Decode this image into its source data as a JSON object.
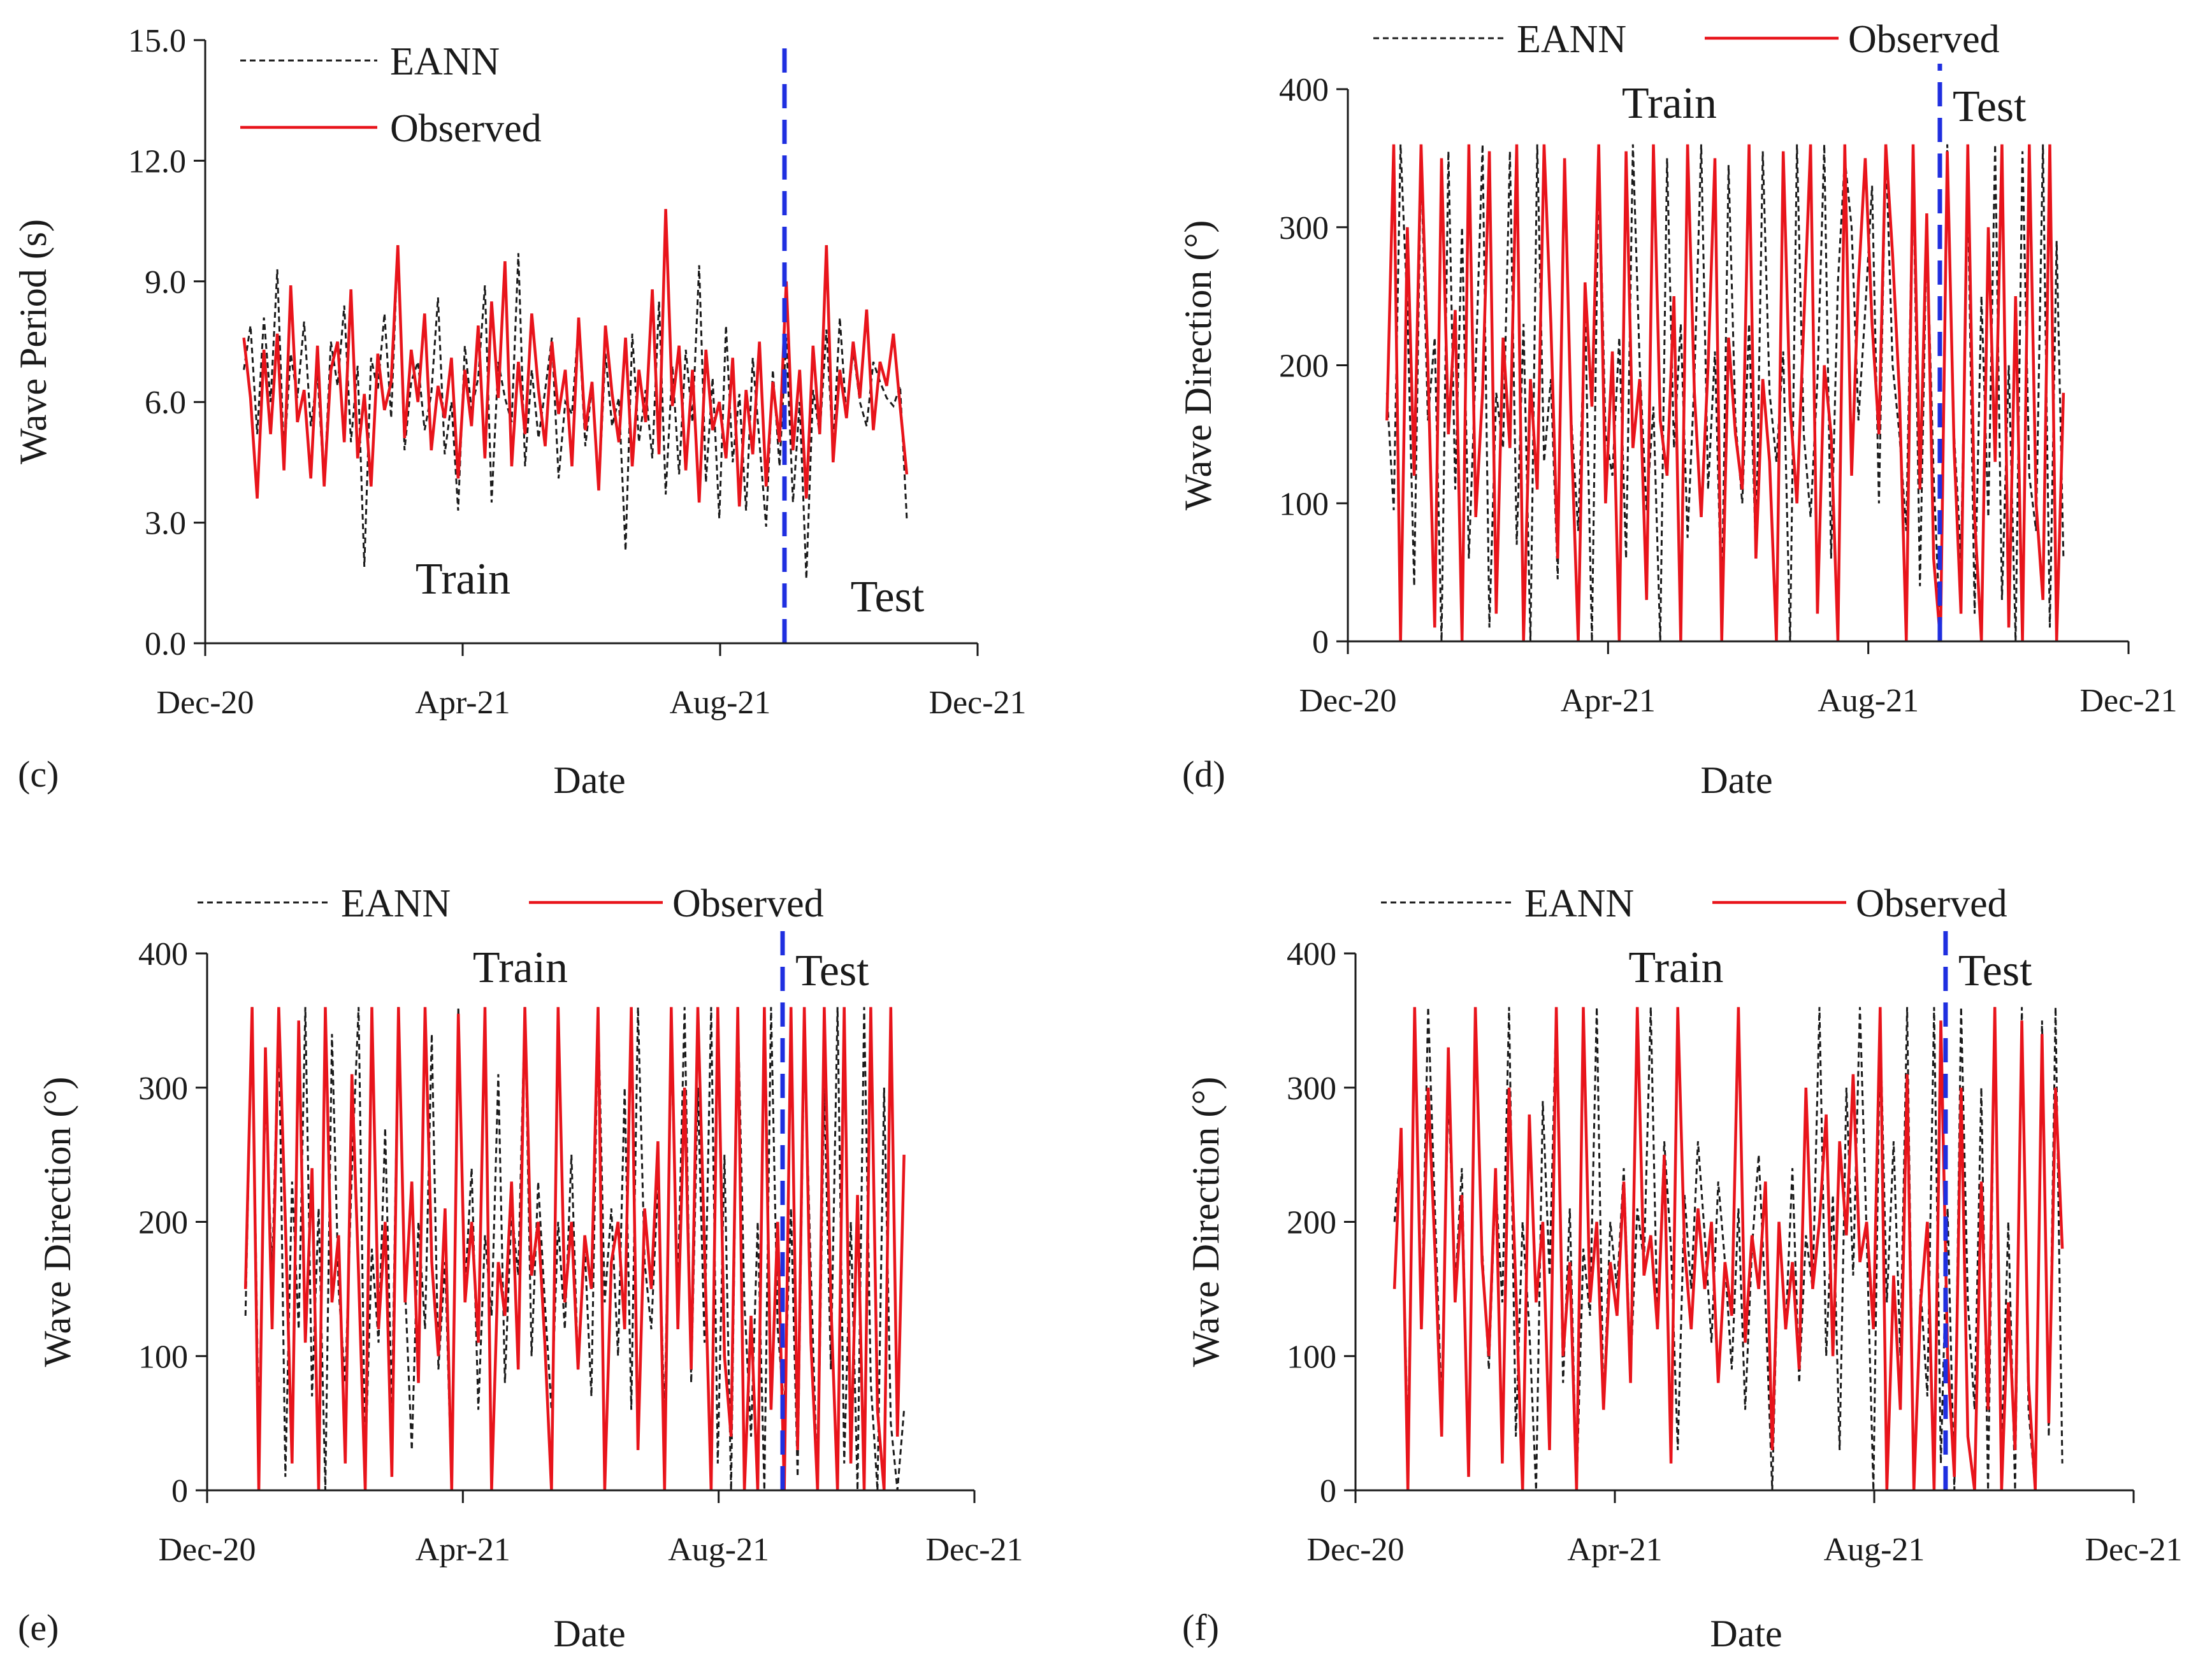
{
  "colors": {
    "eann": "#1a1a1a",
    "observed": "#e8141b",
    "split": "#1f2fe0",
    "axis": "#1a1a1a"
  },
  "chart_data": [
    {
      "panel": "(c)",
      "type": "line",
      "xlabel": "Date",
      "ylabel": "Wave Period (s)",
      "x_ticks": [
        "Dec-20",
        "Apr-21",
        "Aug-21",
        "Dec-21"
      ],
      "x_tick_months": [
        0,
        4,
        8,
        12
      ],
      "xlim_months": [
        0,
        12
      ],
      "ylim": [
        0,
        15
      ],
      "y_ticks": [
        "0.0",
        "3.0",
        "6.0",
        "9.0",
        "12.0",
        "15.0"
      ],
      "y_tick_values": [
        0,
        3,
        6,
        9,
        12,
        15
      ],
      "split_month": 9.0,
      "train_label": "Train",
      "test_label": "Test",
      "legend": [
        "EANN",
        "Observed"
      ],
      "legend_layout": "stacked-top-left",
      "region_label_position": "bottom",
      "series": [
        {
          "name": "EANN",
          "style": "dashed",
          "x_start": 0.6,
          "x_end": 10.9,
          "values": [
            6.8,
            7.9,
            5.2,
            8.1,
            6.0,
            9.3,
            4.6,
            7.2,
            6.1,
            8.0,
            5.4,
            6.7,
            3.9,
            7.5,
            6.4,
            8.4,
            5.0,
            6.9,
            1.9,
            7.1,
            6.3,
            8.2,
            5.6,
            9.9,
            4.8,
            6.5,
            7.0,
            5.3,
            6.2,
            8.6,
            4.7,
            6.0,
            3.3,
            7.4,
            5.8,
            6.6,
            8.9,
            3.5,
            7.0,
            6.1,
            5.5,
            9.7,
            4.4,
            6.8,
            5.1,
            6.3,
            7.6,
            4.1,
            6.0,
            5.7,
            8.0,
            4.9,
            6.4,
            3.8,
            7.2,
            5.4,
            6.1,
            2.3,
            7.7,
            5.0,
            6.3,
            4.6,
            8.5,
            3.7,
            6.9,
            4.2,
            7.3,
            5.5,
            9.4,
            4.0,
            6.6,
            3.1,
            7.9,
            4.5,
            6.2,
            3.3,
            7.1,
            5.0,
            2.9,
            6.8,
            4.4,
            7.6,
            3.5,
            6.0,
            1.6,
            6.3,
            5.2,
            7.8,
            4.8,
            8.1,
            5.6,
            7.3,
            6.0,
            5.4,
            7.0,
            6.5,
            6.1,
            5.9,
            6.4,
            3.1
          ]
        },
        {
          "name": "Observed",
          "style": "solid",
          "x_start": 0.6,
          "x_end": 10.9,
          "values": [
            7.6,
            6.1,
            3.6,
            7.3,
            5.2,
            7.7,
            4.3,
            8.9,
            5.5,
            6.3,
            4.1,
            7.4,
            3.9,
            6.8,
            7.5,
            5.0,
            8.8,
            4.6,
            6.2,
            3.9,
            7.2,
            5.8,
            6.5,
            9.9,
            5.1,
            7.3,
            6.0,
            8.2,
            4.8,
            6.4,
            5.6,
            7.1,
            4.1,
            6.8,
            5.4,
            7.9,
            4.6,
            8.5,
            6.1,
            9.5,
            4.4,
            7.0,
            5.2,
            8.2,
            6.3,
            4.9,
            7.5,
            5.7,
            6.8,
            4.4,
            8.1,
            5.3,
            6.5,
            3.8,
            7.9,
            6.2,
            5.0,
            7.6,
            4.4,
            6.8,
            5.5,
            8.8,
            4.7,
            10.8,
            5.9,
            7.4,
            4.3,
            6.8,
            3.5,
            7.3,
            5.3,
            6.0,
            4.6,
            7.1,
            3.4,
            6.3,
            4.7,
            7.5,
            3.9,
            6.5,
            5.0,
            9.0,
            4.8,
            6.8,
            3.6,
            7.4,
            5.2,
            9.9,
            4.5,
            6.8,
            5.6,
            7.5,
            6.1,
            8.3,
            5.3,
            7.0,
            6.4,
            7.7,
            5.9,
            4.2
          ]
        }
      ]
    },
    {
      "panel": "(d)",
      "type": "line",
      "xlabel": "Date",
      "ylabel": "Wave Direction (°)",
      "x_ticks": [
        "Dec-20",
        "Apr-21",
        "Aug-21",
        "Dec-21"
      ],
      "x_tick_months": [
        0,
        4,
        8,
        12
      ],
      "xlim_months": [
        0,
        12
      ],
      "ylim": [
        0,
        400
      ],
      "y_ticks": [
        "0",
        "100",
        "200",
        "300",
        "400"
      ],
      "y_tick_values": [
        0,
        100,
        200,
        300,
        400
      ],
      "split_month": 9.1,
      "train_label": "Train",
      "test_label": "Test",
      "legend": [
        "EANN",
        "Observed"
      ],
      "legend_layout": "inline-top-center",
      "region_label_position": "top",
      "series": [
        {
          "name": "EANN",
          "style": "dashed",
          "x_start": 0.6,
          "x_end": 11.0,
          "values": [
            180,
            95,
            360,
            240,
            40,
            350,
            160,
            220,
            0,
            355,
            110,
            300,
            60,
            200,
            360,
            10,
            180,
            140,
            355,
            70,
            230,
            0,
            360,
            130,
            190,
            45,
            345,
            160,
            80,
            240,
            0,
            355,
            150,
            120,
            220,
            60,
            360,
            200,
            95,
            170,
            0,
            350,
            140,
            230,
            75,
            190,
            360,
            110,
            210,
            20,
            345,
            160,
            100,
            230,
            60,
            355,
            180,
            130,
            210,
            0,
            360,
            150,
            90,
            190,
            360,
            60,
            260,
            350,
            300,
            160,
            240,
            330,
            100,
            360,
            200,
            150,
            80,
            350,
            40,
            300,
            120,
            0,
            360,
            150,
            60,
            330,
            20,
            250,
            90,
            360,
            30,
            200,
            0,
            355,
            120,
            80,
            360,
            10,
            290,
            60
          ]
        },
        {
          "name": "Observed",
          "style": "solid",
          "x_start": 0.6,
          "x_end": 11.0,
          "values": [
            160,
            360,
            0,
            300,
            120,
            360,
            200,
            10,
            350,
            150,
            240,
            0,
            360,
            90,
            180,
            355,
            20,
            220,
            140,
            360,
            0,
            190,
            110,
            360,
            230,
            60,
            350,
            150,
            0,
            260,
            170,
            360,
            100,
            210,
            0,
            355,
            140,
            190,
            30,
            360,
            160,
            120,
            250,
            0,
            360,
            180,
            90,
            200,
            350,
            0,
            220,
            150,
            110,
            360,
            60,
            190,
            130,
            0,
            355,
            170,
            100,
            230,
            360,
            20,
            200,
            150,
            0,
            360,
            120,
            260,
            350,
            230,
            150,
            360,
            280,
            180,
            0,
            360,
            110,
            310,
            60,
            0,
            355,
            140,
            20,
            360,
            90,
            0,
            300,
            130,
            360,
            10,
            250,
            0,
            360,
            100,
            30,
            360,
            0,
            180
          ]
        }
      ]
    },
    {
      "panel": "(e)",
      "type": "line",
      "xlabel": "Date",
      "ylabel": "Wave Direction (°)",
      "x_ticks": [
        "Dec-20",
        "Apr-21",
        "Aug-21",
        "Dec-21"
      ],
      "x_tick_months": [
        0,
        4,
        8,
        12
      ],
      "xlim_months": [
        0,
        12
      ],
      "ylim": [
        0,
        400
      ],
      "y_ticks": [
        "0",
        "100",
        "200",
        "300",
        "400"
      ],
      "y_tick_values": [
        0,
        100,
        200,
        300,
        400
      ],
      "split_month": 9.0,
      "train_label": "Train",
      "test_label": "Test",
      "legend": [
        "EANN",
        "Observed"
      ],
      "legend_layout": "inline-top-center",
      "region_label_position": "top",
      "series": [
        {
          "name": "EANN",
          "style": "dashed",
          "x_start": 0.6,
          "x_end": 10.9,
          "values": [
            130,
            360,
            40,
            300,
            160,
            355,
            10,
            230,
            120,
            360,
            70,
            210,
            0,
            340,
            150,
            80,
            240,
            360,
            20,
            180,
            110,
            270,
            60,
            360,
            150,
            30,
            200,
            120,
            340,
            90,
            170,
            0,
            360,
            150,
            240,
            60,
            190,
            130,
            310,
            80,
            210,
            160,
            360,
            100,
            230,
            140,
            60,
            200,
            120,
            250,
            90,
            180,
            70,
            360,
            140,
            210,
            100,
            300,
            60,
            360,
            170,
            120,
            230,
            50,
            330,
            150,
            360,
            80,
            300,
            110,
            360,
            20,
            250,
            0,
            360,
            140,
            40,
            200,
            0,
            360,
            120,
            60,
            210,
            10,
            340,
            160,
            0,
            300,
            90,
            360,
            20,
            200,
            0,
            360,
            80,
            0,
            300,
            50,
            0,
            60
          ]
        },
        {
          "name": "Observed",
          "style": "solid",
          "x_start": 0.6,
          "x_end": 10.9,
          "values": [
            150,
            360,
            0,
            330,
            120,
            360,
            200,
            20,
            350,
            110,
            240,
            0,
            360,
            140,
            190,
            20,
            310,
            160,
            0,
            360,
            120,
            200,
            10,
            360,
            140,
            230,
            80,
            360,
            170,
            100,
            210,
            0,
            355,
            140,
            200,
            110,
            360,
            0,
            170,
            130,
            230,
            90,
            360,
            160,
            200,
            110,
            0,
            360,
            140,
            200,
            90,
            190,
            150,
            360,
            0,
            170,
            200,
            120,
            360,
            30,
            210,
            150,
            260,
            0,
            360,
            120,
            300,
            90,
            360,
            180,
            0,
            360,
            100,
            40,
            360,
            0,
            130,
            0,
            360,
            60,
            200,
            0,
            360,
            30,
            360,
            110,
            0,
            360,
            140,
            0,
            360,
            20,
            220,
            0,
            360,
            60,
            0,
            360,
            40,
            250
          ]
        }
      ]
    },
    {
      "panel": "(f)",
      "type": "line",
      "xlabel": "Date",
      "ylabel": "Wave Direction (°)",
      "x_ticks": [
        "Dec-20",
        "Apr-21",
        "Aug-21",
        "Dec-21"
      ],
      "x_tick_months": [
        0,
        4,
        8,
        12
      ],
      "xlim_months": [
        0,
        12
      ],
      "ylim": [
        0,
        400
      ],
      "y_ticks": [
        "0",
        "100",
        "200",
        "300",
        "400"
      ],
      "y_tick_values": [
        0,
        100,
        200,
        300,
        400
      ],
      "split_month": 9.1,
      "train_label": "Train",
      "test_label": "Test",
      "legend": [
        "EANN",
        "Observed"
      ],
      "legend_layout": "inline-top-center",
      "region_label_position": "top",
      "series": [
        {
          "name": "EANN",
          "style": "dashed",
          "x_start": 0.6,
          "x_end": 10.9,
          "values": [
            200,
            260,
            30,
            350,
            120,
            360,
            210,
            60,
            300,
            150,
            240,
            10,
            360,
            180,
            90,
            230,
            140,
            360,
            40,
            200,
            120,
            0,
            290,
            160,
            360,
            80,
            210,
            0,
            180,
            130,
            360,
            60,
            200,
            150,
            240,
            90,
            210,
            170,
            360,
            120,
            260,
            180,
            30,
            220,
            150,
            260,
            190,
            110,
            230,
            170,
            90,
            210,
            60,
            180,
            250,
            140,
            0,
            200,
            120,
            240,
            80,
            190,
            150,
            360,
            100,
            220,
            30,
            300,
            160,
            360,
            190,
            0,
            350,
            140,
            260,
            100,
            360,
            0,
            150,
            70,
            360,
            20,
            210,
            0,
            360,
            140,
            60,
            300,
            0,
            360,
            30,
            200,
            0,
            360,
            60,
            0,
            350,
            40,
            360,
            20
          ]
        },
        {
          "name": "Observed",
          "style": "solid",
          "x_start": 0.6,
          "x_end": 10.9,
          "values": [
            150,
            270,
            0,
            360,
            120,
            300,
            180,
            40,
            330,
            140,
            220,
            10,
            360,
            170,
            100,
            240,
            20,
            300,
            150,
            0,
            280,
            140,
            200,
            30,
            360,
            100,
            170,
            0,
            360,
            140,
            200,
            60,
            170,
            130,
            230,
            80,
            360,
            160,
            190,
            120,
            250,
            20,
            360,
            180,
            120,
            210,
            150,
            200,
            80,
            170,
            130,
            360,
            110,
            190,
            150,
            230,
            30,
            200,
            120,
            170,
            90,
            300,
            150,
            200,
            280,
            100,
            260,
            190,
            310,
            170,
            200,
            120,
            360,
            0,
            160,
            60,
            310,
            0,
            140,
            200,
            0,
            350,
            100,
            10,
            300,
            40,
            0,
            230,
            60,
            360,
            0,
            140,
            30,
            350,
            80,
            0,
            340,
            50,
            300,
            180
          ]
        }
      ]
    }
  ]
}
